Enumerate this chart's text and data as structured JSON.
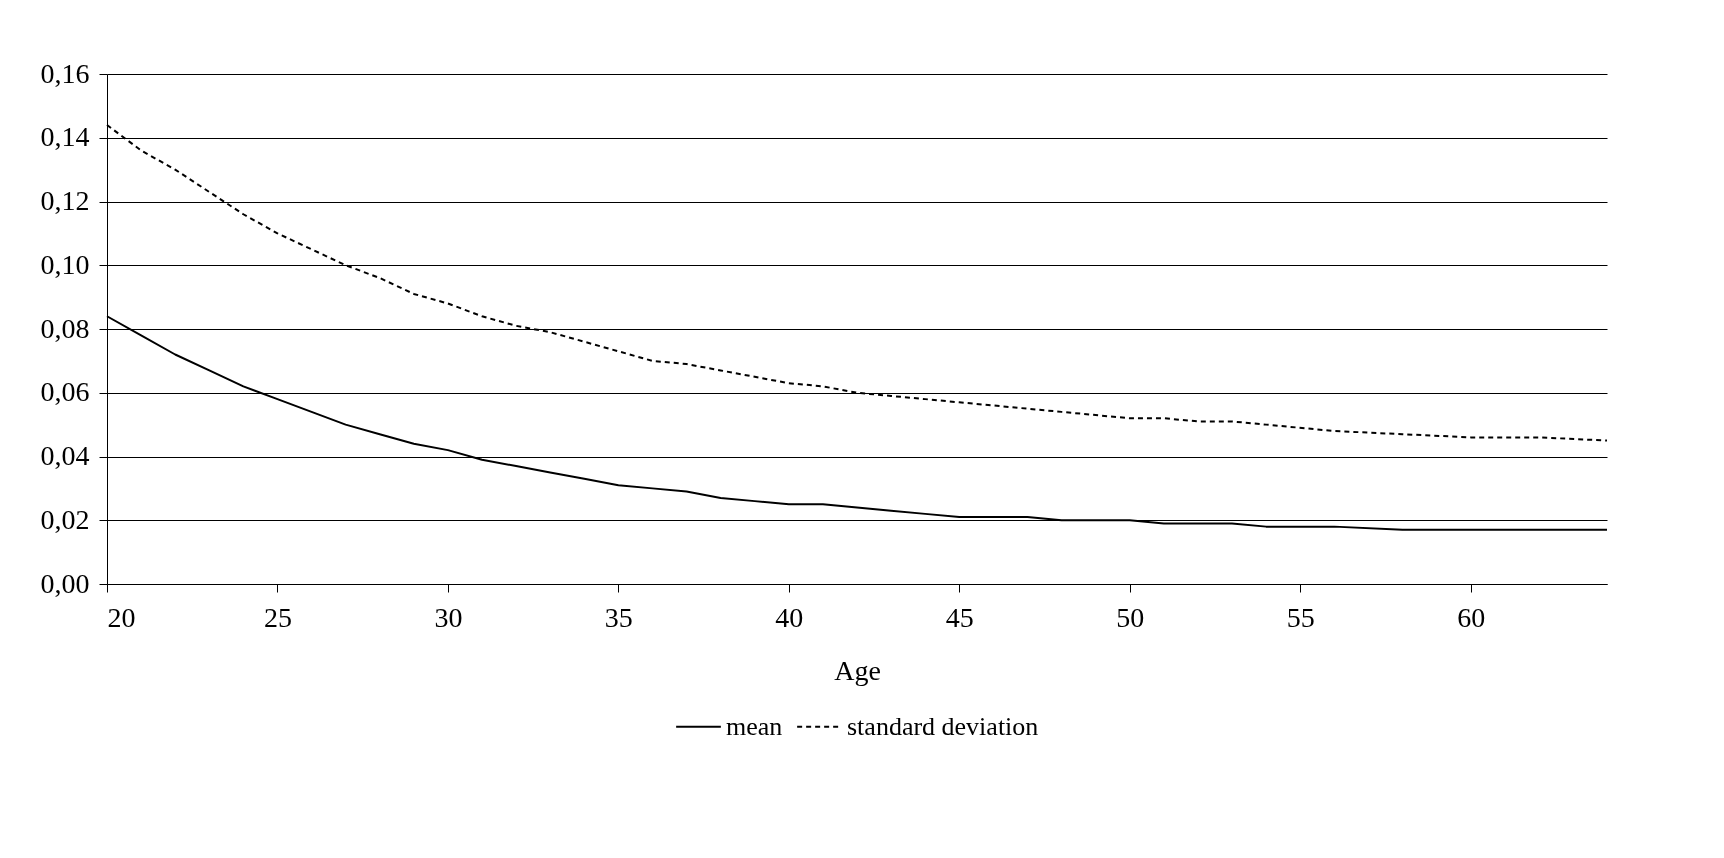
{
  "chart_data": {
    "type": "line",
    "xlabel": "Age",
    "x": [
      20,
      21,
      22,
      23,
      24,
      25,
      26,
      27,
      28,
      29,
      30,
      31,
      32,
      33,
      34,
      35,
      36,
      37,
      38,
      39,
      40,
      41,
      42,
      43,
      44,
      45,
      46,
      47,
      48,
      49,
      50,
      51,
      52,
      53,
      54,
      56,
      58,
      60,
      62,
      64
    ],
    "series": [
      {
        "name": "mean",
        "color": "#000000",
        "line_style": "solid",
        "values": [
          0.084,
          0.078,
          0.072,
          0.067,
          0.062,
          0.058,
          0.054,
          0.05,
          0.047,
          0.044,
          0.042,
          0.039,
          0.037,
          0.035,
          0.033,
          0.031,
          0.03,
          0.029,
          0.027,
          0.026,
          0.025,
          0.025,
          0.024,
          0.023,
          0.022,
          0.021,
          0.021,
          0.021,
          0.02,
          0.02,
          0.02,
          0.019,
          0.019,
          0.019,
          0.018,
          0.018,
          0.017,
          0.017,
          0.017,
          0.017
        ]
      },
      {
        "name": "standard deviation",
        "color": "#000000",
        "line_style": "dashed",
        "values": [
          0.144,
          0.136,
          0.13,
          0.123,
          0.116,
          0.11,
          0.105,
          0.1,
          0.096,
          0.091,
          0.088,
          0.084,
          0.081,
          0.079,
          0.076,
          0.073,
          0.07,
          0.069,
          0.067,
          0.065,
          0.063,
          0.062,
          0.06,
          0.059,
          0.058,
          0.057,
          0.056,
          0.055,
          0.054,
          0.053,
          0.052,
          0.052,
          0.051,
          0.051,
          0.05,
          0.048,
          0.047,
          0.046,
          0.046,
          0.045
        ]
      }
    ],
    "xlim": [
      20,
      64
    ],
    "xticks": [
      20,
      25,
      30,
      35,
      40,
      45,
      50,
      55,
      60
    ],
    "ylim": [
      0,
      0.16
    ],
    "yticks": [
      {
        "value": 0,
        "label": "0,00"
      },
      {
        "value": 0.02,
        "label": "0,02"
      },
      {
        "value": 0.04,
        "label": "0,04"
      },
      {
        "value": 0.06,
        "label": "0,06"
      },
      {
        "value": 0.08,
        "label": "0,08"
      },
      {
        "value": 0.1,
        "label": "0,10"
      },
      {
        "value": 0.12,
        "label": "0,12"
      },
      {
        "value": 0.14,
        "label": "0,14"
      },
      {
        "value": 0.16,
        "label": "0,16"
      }
    ],
    "grid": "y",
    "legend": "bottom",
    "marker": "none"
  }
}
